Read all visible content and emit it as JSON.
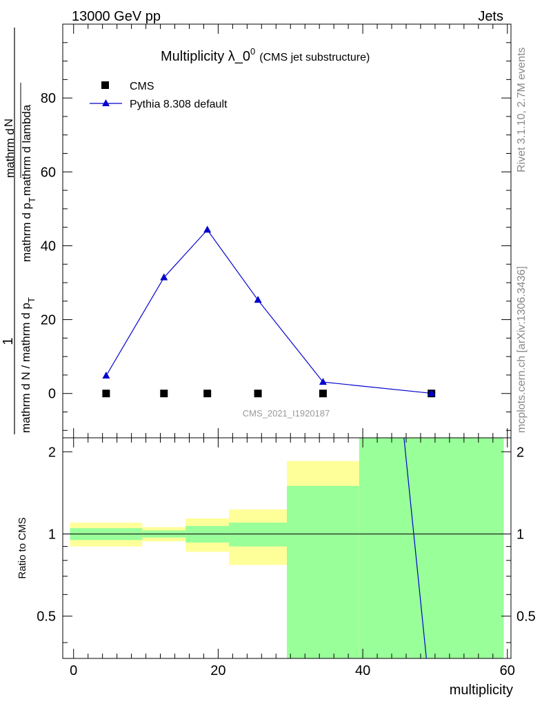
{
  "header": {
    "left": "13000 GeV pp",
    "right": "Jets"
  },
  "side_labels": {
    "rivet": "Rivet 3.1.10,  2.7M events",
    "mcplots": "mcplots.cern.ch [arXiv:1306.3436]"
  },
  "colors": {
    "mc": "#0000cc",
    "data": "#000000",
    "band_outer": "#ffff99",
    "band_inner": "#99ff99"
  },
  "chart_data": [
    {
      "type": "line",
      "title_main": "Multiplicity λ_0",
      "title_sup": "0",
      "title_sub": "(CMS jet substructure)",
      "ylabel_numerator": "1",
      "ylabel_denominator": "mathrm d N / mathrm d p",
      "ylabel_sub": "T",
      "ylabel_right_top": "mathrm d",
      "ylabel_right_top2": "N",
      "ylabel_right_bottom": "mathrm d p",
      "ylabel_right_bottom_sub": "T",
      "ylabel_right_bottom2": "mathrm d lambda",
      "watermark": "CMS_2021_I1920187",
      "xlim": [
        -1.5,
        60.5
      ],
      "ylim": [
        -12,
        100
      ],
      "yticks": [
        0,
        20,
        40,
        60,
        80
      ],
      "legend_position": "top-left",
      "series": [
        {
          "name": "CMS",
          "marker": "square",
          "x": [
            4.5,
            12.5,
            18.5,
            25.5,
            34.5,
            49.5
          ],
          "y": [
            0,
            0,
            0,
            0,
            0,
            0
          ]
        },
        {
          "name": "Pythia 8.308 default",
          "marker": "triangle",
          "x": [
            4.5,
            12.5,
            18.5,
            25.5,
            34.5,
            49.5
          ],
          "y": [
            4.8,
            31.4,
            44.3,
            25.3,
            3.1,
            0.05
          ]
        }
      ]
    },
    {
      "type": "area",
      "ylabel": "Ratio to CMS",
      "xlabel": "multiplicity",
      "xlim": [
        -1.5,
        60.5
      ],
      "ylim": [
        0.35,
        2.25
      ],
      "xticks": [
        0,
        20,
        40,
        60
      ],
      "yticks": [
        0.5,
        1,
        2
      ],
      "bands": [
        {
          "x": [
            -0.5,
            9.5
          ],
          "outer": [
            0.9,
            1.1
          ],
          "inner": [
            0.95,
            1.05
          ]
        },
        {
          "x": [
            9.5,
            15.5
          ],
          "outer": [
            0.94,
            1.06
          ],
          "inner": [
            0.97,
            1.03
          ]
        },
        {
          "x": [
            15.5,
            21.5
          ],
          "outer": [
            0.86,
            1.14
          ],
          "inner": [
            0.93,
            1.07
          ]
        },
        {
          "x": [
            21.5,
            29.5
          ],
          "outer": [
            0.77,
            1.23
          ],
          "inner": [
            0.9,
            1.1
          ]
        },
        {
          "x": [
            29.5,
            39.5
          ],
          "outer": [
            0.35,
            1.85
          ],
          "inner": [
            0.35,
            1.5
          ]
        },
        {
          "x": [
            39.5,
            59.5
          ],
          "outer": [
            0.35,
            2.25
          ],
          "inner": [
            0.35,
            2.25
          ]
        }
      ],
      "mc_line": {
        "x": [
          45.7,
          48.8
        ],
        "y": [
          2.25,
          0.35
        ]
      }
    }
  ]
}
